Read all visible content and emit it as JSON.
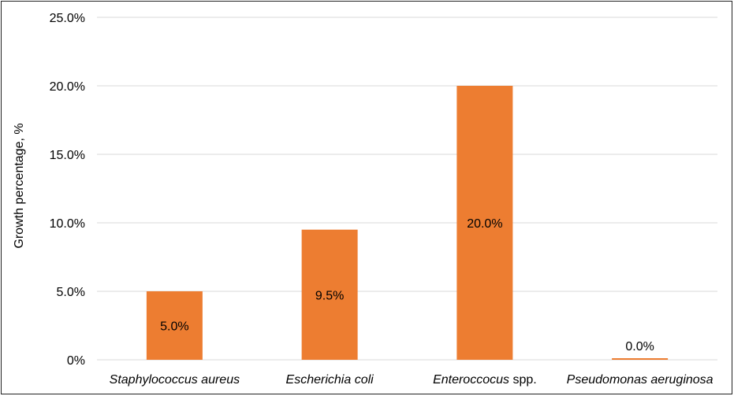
{
  "chart_data": {
    "type": "bar",
    "title": "",
    "xlabel": "",
    "ylabel": "Growth percentage, %",
    "ylim": [
      0,
      25
    ],
    "y_ticks": [
      "0%",
      "5.0%",
      "10.0%",
      "15.0%",
      "20.0%",
      "25.0%"
    ],
    "grid": true,
    "categories": [
      {
        "parts": [
          {
            "text": "Staphylococcus aureus",
            "italic": true
          }
        ]
      },
      {
        "parts": [
          {
            "text": "Escherichia coli",
            "italic": true
          }
        ]
      },
      {
        "parts": [
          {
            "text": "Enteroccocus",
            "italic": true
          },
          {
            "text": " spp.",
            "italic": false
          }
        ]
      },
      {
        "parts": [
          {
            "text": "Pseudomonas aeruginosa",
            "italic": true
          }
        ]
      }
    ],
    "values": [
      5.0,
      9.5,
      20.0,
      0.0
    ],
    "data_labels": [
      "5.0%",
      "9.5%",
      "20.0%",
      "0.0%"
    ],
    "bar_color": "#ED7D31"
  }
}
